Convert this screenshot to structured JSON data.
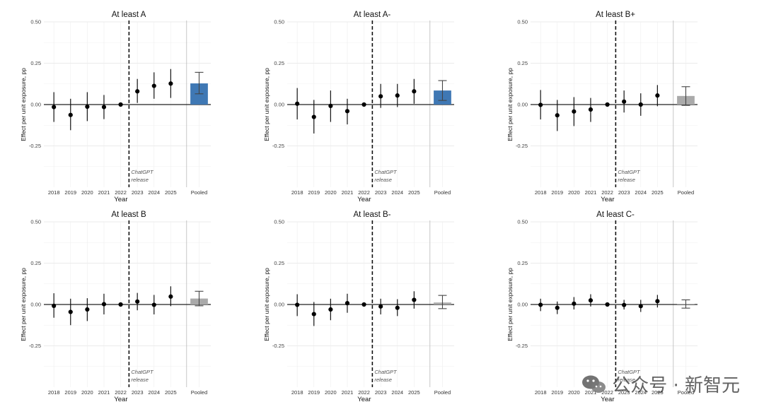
{
  "chart_data": [
    {
      "type": "errorbar",
      "title": "At least A",
      "xlabel": "Year",
      "ylabel": "Effect per unit exposure, pp",
      "ylim": [
        -0.5,
        0.5
      ],
      "yticks": [
        "0.50",
        "0.25",
        "0.00",
        "-0.25"
      ],
      "categories": [
        "2018",
        "2019",
        "2020",
        "2021",
        "2022",
        "2023",
        "2024",
        "2025"
      ],
      "estimates": [
        -0.015,
        -0.063,
        -0.013,
        -0.015,
        0.0,
        0.08,
        0.113,
        0.127
      ],
      "ci_low": [
        -0.105,
        -0.155,
        -0.1,
        -0.088,
        0.0,
        0.01,
        0.035,
        0.04
      ],
      "ci_high": [
        0.075,
        0.035,
        0.075,
        0.058,
        0.0,
        0.155,
        0.195,
        0.215
      ],
      "pooled": {
        "label": "Pooled",
        "value": 0.128,
        "ci": [
          0.065,
          0.195
        ],
        "color": "#3f78b4"
      },
      "annotation": [
        "ChatGPT",
        "release"
      ],
      "grid": true
    },
    {
      "type": "errorbar",
      "title": "At least A-",
      "xlabel": "Year",
      "ylabel": "Effect per unit exposure, pp",
      "ylim": [
        -0.5,
        0.5
      ],
      "yticks": [
        "0.50",
        "0.25",
        "0.00",
        "-0.25"
      ],
      "categories": [
        "2018",
        "2019",
        "2020",
        "2021",
        "2022",
        "2023",
        "2024",
        "2025"
      ],
      "estimates": [
        0.005,
        -0.075,
        -0.008,
        -0.04,
        0.0,
        0.05,
        0.055,
        0.08
      ],
      "ci_low": [
        -0.09,
        -0.175,
        -0.105,
        -0.12,
        0.0,
        -0.02,
        -0.015,
        0.005
      ],
      "ci_high": [
        0.1,
        0.028,
        0.085,
        0.035,
        0.0,
        0.125,
        0.125,
        0.155
      ],
      "pooled": {
        "label": "Pooled",
        "value": 0.085,
        "ci": [
          0.025,
          0.145
        ],
        "color": "#3f78b4"
      },
      "annotation": [
        "ChatGPT",
        "release"
      ],
      "grid": true
    },
    {
      "type": "errorbar",
      "title": "At least B+",
      "xlabel": "Year",
      "ylabel": "Effect per unit exposure, pp",
      "ylim": [
        -0.5,
        0.5
      ],
      "yticks": [
        "0.50",
        "0.25",
        "0.00",
        "-0.25"
      ],
      "categories": [
        "2018",
        "2019",
        "2020",
        "2021",
        "2022",
        "2023",
        "2024",
        "2025"
      ],
      "estimates": [
        -0.002,
        -0.065,
        -0.042,
        -0.03,
        0.0,
        0.018,
        0.0,
        0.055
      ],
      "ci_low": [
        -0.09,
        -0.16,
        -0.13,
        -0.105,
        0.0,
        -0.048,
        -0.068,
        -0.01
      ],
      "ci_high": [
        0.088,
        0.028,
        0.045,
        0.04,
        0.0,
        0.085,
        0.068,
        0.118
      ],
      "pooled": {
        "label": "Pooled",
        "value": 0.052,
        "ci": [
          -0.005,
          0.108
        ],
        "color": "#aaaaaa"
      },
      "annotation": [
        "ChatGPT",
        "release"
      ],
      "grid": true
    },
    {
      "type": "errorbar",
      "title": "At least B",
      "xlabel": "Year",
      "ylabel": "Effect per unit exposure, pp",
      "ylim": [
        -0.5,
        0.5
      ],
      "yticks": [
        "0.50",
        "0.25",
        "0.00",
        "-0.25"
      ],
      "categories": [
        "2018",
        "2019",
        "2020",
        "2021",
        "2022",
        "2023",
        "2024",
        "2025"
      ],
      "estimates": [
        -0.008,
        -0.045,
        -0.03,
        0.002,
        0.0,
        0.018,
        -0.002,
        0.048
      ],
      "ci_low": [
        -0.08,
        -0.125,
        -0.1,
        -0.06,
        0.0,
        -0.035,
        -0.06,
        -0.01
      ],
      "ci_high": [
        0.068,
        0.035,
        0.038,
        0.065,
        0.0,
        0.07,
        0.058,
        0.11
      ],
      "pooled": {
        "label": "Pooled",
        "value": 0.036,
        "ci": [
          -0.008,
          0.08
        ],
        "color": "#aaaaaa"
      },
      "annotation": [
        "ChatGPT",
        "release"
      ],
      "grid": true
    },
    {
      "type": "errorbar",
      "title": "At least B-",
      "xlabel": "Year",
      "ylabel": "Effect per unit exposure, pp",
      "ylim": [
        -0.5,
        0.5
      ],
      "yticks": [
        "0.50",
        "0.25",
        "0.00",
        "-0.25"
      ],
      "categories": [
        "2018",
        "2019",
        "2020",
        "2021",
        "2022",
        "2023",
        "2024",
        "2025"
      ],
      "estimates": [
        -0.002,
        -0.058,
        -0.03,
        0.008,
        0.0,
        -0.012,
        -0.02,
        0.028
      ],
      "ci_low": [
        -0.07,
        -0.13,
        -0.095,
        -0.05,
        0.0,
        -0.06,
        -0.07,
        -0.025
      ],
      "ci_high": [
        0.062,
        0.015,
        0.035,
        0.065,
        0.0,
        0.035,
        0.032,
        0.08
      ],
      "pooled": {
        "label": "Pooled",
        "value": 0.012,
        "ci": [
          -0.025,
          0.055
        ],
        "color": "#aaaaaa"
      },
      "annotation": [
        "ChatGPT",
        "release"
      ],
      "grid": true
    },
    {
      "type": "errorbar",
      "title": "At least C-",
      "xlabel": "Year",
      "ylabel": "Effect per unit exposure, pp",
      "ylim": [
        -0.5,
        0.5
      ],
      "yticks": [
        "0.50",
        "0.25",
        "0.00",
        "-0.25"
      ],
      "categories": [
        "2018",
        "2019",
        "2020",
        "2021",
        "2022",
        "2023",
        "2024",
        "2025"
      ],
      "estimates": [
        -0.002,
        -0.02,
        0.005,
        0.025,
        0.0,
        -0.003,
        -0.01,
        0.02
      ],
      "ci_low": [
        -0.04,
        -0.058,
        -0.03,
        -0.012,
        0.0,
        -0.03,
        -0.045,
        -0.018
      ],
      "ci_high": [
        0.035,
        0.018,
        0.045,
        0.062,
        0.0,
        0.028,
        0.028,
        0.058
      ],
      "pooled": {
        "label": "Pooled",
        "value": 0.003,
        "ci": [
          -0.022,
          0.028
        ],
        "color": "#aaaaaa"
      },
      "annotation": [
        "ChatGPT",
        "release"
      ],
      "grid": true
    }
  ],
  "watermark": {
    "text": "公众号 · 新智元",
    "icon": "wechat-icon"
  }
}
